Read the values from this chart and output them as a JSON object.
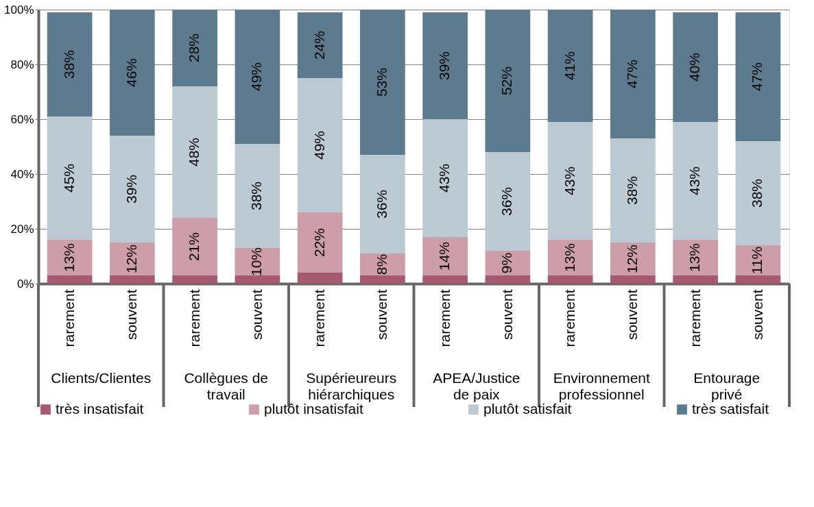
{
  "chart_data": {
    "type": "bar",
    "stacked": true,
    "categories": [
      "rarement",
      "souvent",
      "rarement",
      "souvent",
      "rarement",
      "souvent",
      "rarement",
      "souvent",
      "rarement",
      "souvent",
      "rarement",
      "souvent"
    ],
    "series": [
      {
        "name": "très insatisfait",
        "color": "#a65a72",
        "values": [
          3,
          3,
          3,
          3,
          4,
          3,
          3,
          3,
          3,
          3,
          3,
          3
        ],
        "value_labels": [
          null,
          null,
          null,
          null,
          null,
          null,
          null,
          null,
          null,
          null,
          null,
          null
        ]
      },
      {
        "name": "plutôt insatisfait",
        "color": "#cd9ea9",
        "values": [
          13,
          12,
          21,
          10,
          22,
          8,
          14,
          9,
          13,
          12,
          13,
          11
        ],
        "value_labels": [
          "13%",
          "12%",
          "21%",
          "10%",
          "22%",
          "8%",
          "14%",
          "9%",
          "13%",
          "12%",
          "13%",
          "11%"
        ]
      },
      {
        "name": "plutôt satisfait",
        "color": "#bccad3",
        "values": [
          45,
          39,
          48,
          38,
          49,
          36,
          43,
          36,
          43,
          38,
          43,
          38
        ],
        "value_labels": [
          "45%",
          "39%",
          "48%",
          "38%",
          "49%",
          "36%",
          "43%",
          "36%",
          "43%",
          "38%",
          "43%",
          "38%"
        ]
      },
      {
        "name": "très satisfait",
        "color": "#5c7b8f",
        "values": [
          38,
          46,
          28,
          49,
          24,
          53,
          39,
          52,
          41,
          47,
          40,
          47
        ],
        "value_labels": [
          "38%",
          "46%",
          "28%",
          "49%",
          "24%",
          "53%",
          "39%",
          "52%",
          "41%",
          "47%",
          "40%",
          "47%"
        ]
      }
    ],
    "ylim": [
      0,
      100
    ],
    "yticks": [
      {
        "value": 0,
        "label": "0%"
      },
      {
        "value": 20,
        "label": "20%"
      },
      {
        "value": 40,
        "label": "40%"
      },
      {
        "value": 60,
        "label": "60%"
      },
      {
        "value": 80,
        "label": "80%"
      },
      {
        "value": 100,
        "label": "100%"
      }
    ],
    "grid": "y",
    "legend": "bottom",
    "annotations": [
      "Clients/Clientes",
      "Collègues de travail",
      "Supérieureurs hiérarchiques",
      "APEA/Justice de paix",
      "Environnement professionnel",
      "Entourage privé"
    ]
  }
}
